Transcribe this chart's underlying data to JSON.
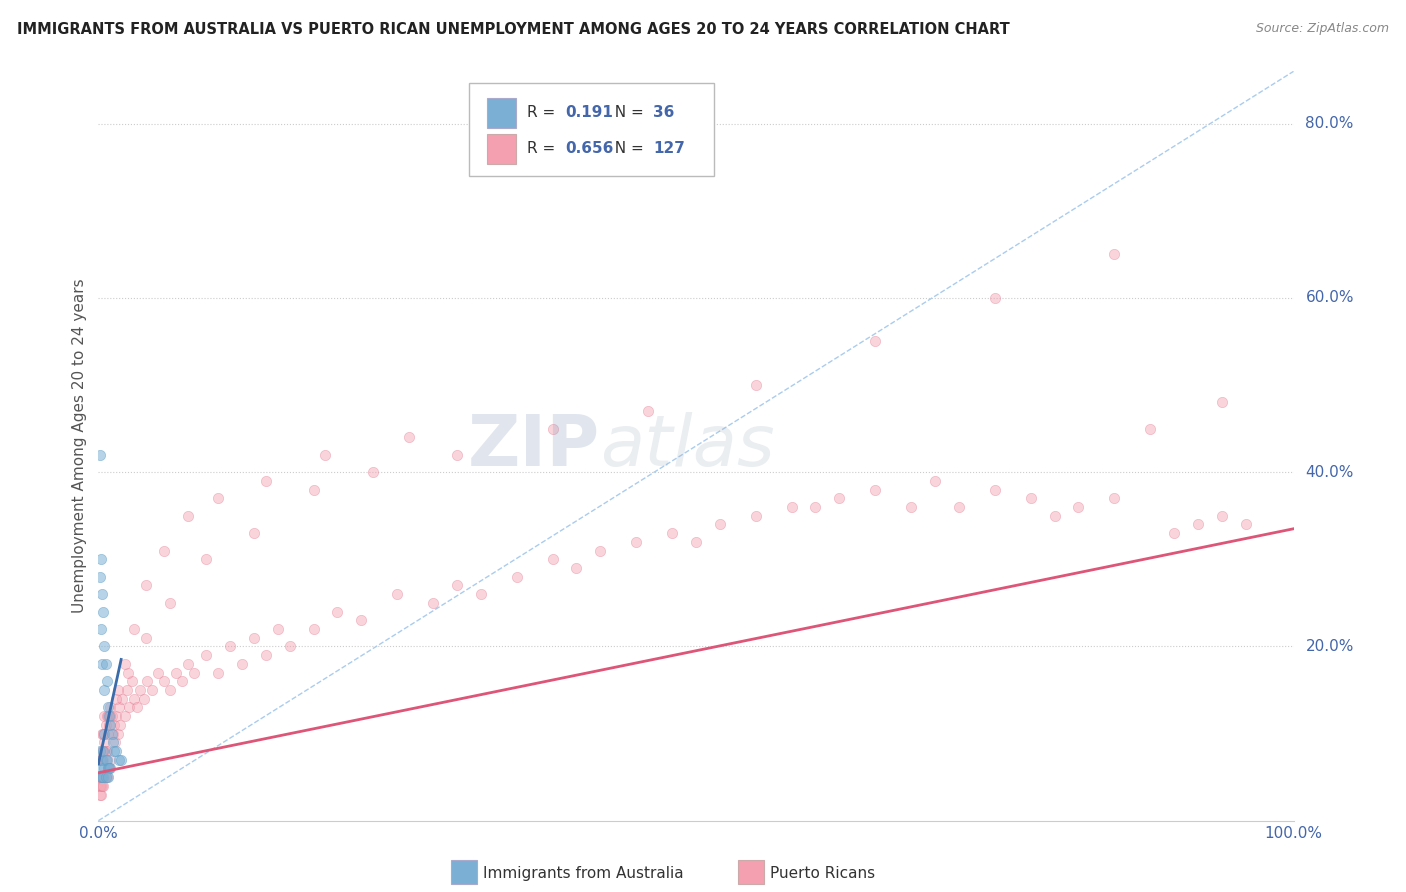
{
  "title": "IMMIGRANTS FROM AUSTRALIA VS PUERTO RICAN UNEMPLOYMENT AMONG AGES 20 TO 24 YEARS CORRELATION CHART",
  "source": "Source: ZipAtlas.com",
  "ylabel": "Unemployment Among Ages 20 to 24 years",
  "legend_blue_label": "Immigrants from Australia",
  "legend_pink_label": "Puerto Ricans",
  "blue_R": "0.191",
  "blue_N": "36",
  "pink_R": "0.656",
  "pink_N": "127",
  "blue_color": "#7BAFD4",
  "blue_edge": "#5A9BC4",
  "pink_color": "#F4A0B0",
  "pink_edge": "#E07890",
  "blue_line_color": "#3A6BAA",
  "pink_line_color": "#DD5577",
  "diagonal_color": "#AACCEE",
  "background": "#FFFFFF",
  "grid_color": "#CCCCCC",
  "title_color": "#222222",
  "tick_label_color": "#4466AA",
  "watermark_zip": "ZIP",
  "watermark_atlas": "atlas",
  "xlim": [
    0.0,
    1.0
  ],
  "ylim": [
    0.0,
    0.86
  ],
  "ytick_vals": [
    0.2,
    0.4,
    0.6,
    0.8
  ],
  "ytick_labels": [
    "20.0%",
    "40.0%",
    "60.0%",
    "80.0%"
  ],
  "marker_size": 55,
  "alpha_blue": 0.55,
  "alpha_pink": 0.45,
  "blue_scatter_x": [
    0.001,
    0.001,
    0.002,
    0.002,
    0.002,
    0.003,
    0.003,
    0.003,
    0.004,
    0.004,
    0.005,
    0.005,
    0.005,
    0.005,
    0.006,
    0.006,
    0.007,
    0.007,
    0.008,
    0.008,
    0.009,
    0.009,
    0.01,
    0.01,
    0.011,
    0.012,
    0.013,
    0.015,
    0.017,
    0.019,
    0.001,
    0.002,
    0.003,
    0.004,
    0.006,
    0.008
  ],
  "blue_scatter_y": [
    0.42,
    0.08,
    0.3,
    0.22,
    0.06,
    0.26,
    0.18,
    0.07,
    0.24,
    0.08,
    0.2,
    0.15,
    0.1,
    0.06,
    0.18,
    0.07,
    0.16,
    0.07,
    0.13,
    0.06,
    0.12,
    0.06,
    0.11,
    0.06,
    0.1,
    0.09,
    0.08,
    0.08,
    0.07,
    0.07,
    0.28,
    0.05,
    0.05,
    0.05,
    0.05,
    0.05
  ],
  "pink_scatter_x": [
    0.001,
    0.001,
    0.001,
    0.002,
    0.002,
    0.002,
    0.002,
    0.003,
    0.003,
    0.003,
    0.003,
    0.004,
    0.004,
    0.004,
    0.005,
    0.005,
    0.005,
    0.006,
    0.006,
    0.006,
    0.007,
    0.007,
    0.007,
    0.008,
    0.008,
    0.009,
    0.009,
    0.01,
    0.01,
    0.011,
    0.012,
    0.013,
    0.014,
    0.015,
    0.016,
    0.017,
    0.018,
    0.02,
    0.022,
    0.024,
    0.026,
    0.028,
    0.03,
    0.032,
    0.035,
    0.038,
    0.041,
    0.045,
    0.05,
    0.055,
    0.06,
    0.065,
    0.07,
    0.075,
    0.08,
    0.09,
    0.1,
    0.11,
    0.12,
    0.13,
    0.14,
    0.15,
    0.16,
    0.18,
    0.2,
    0.22,
    0.25,
    0.28,
    0.3,
    0.32,
    0.35,
    0.38,
    0.4,
    0.42,
    0.45,
    0.48,
    0.5,
    0.52,
    0.55,
    0.58,
    0.6,
    0.62,
    0.65,
    0.68,
    0.7,
    0.72,
    0.75,
    0.78,
    0.8,
    0.82,
    0.85,
    0.88,
    0.9,
    0.92,
    0.94,
    0.96,
    0.003,
    0.008,
    0.015,
    0.025,
    0.04,
    0.06,
    0.09,
    0.13,
    0.18,
    0.23,
    0.3,
    0.38,
    0.46,
    0.55,
    0.65,
    0.75,
    0.85,
    0.94,
    0.002,
    0.005,
    0.01,
    0.016,
    0.022,
    0.03,
    0.04,
    0.055,
    0.075,
    0.1,
    0.14,
    0.19,
    0.26
  ],
  "pink_scatter_y": [
    0.05,
    0.04,
    0.03,
    0.07,
    0.05,
    0.04,
    0.03,
    0.1,
    0.07,
    0.05,
    0.04,
    0.1,
    0.07,
    0.04,
    0.12,
    0.08,
    0.05,
    0.11,
    0.08,
    0.05,
    0.12,
    0.08,
    0.05,
    0.12,
    0.06,
    0.11,
    0.06,
    0.13,
    0.07,
    0.12,
    0.1,
    0.11,
    0.09,
    0.12,
    0.1,
    0.13,
    0.11,
    0.14,
    0.12,
    0.15,
    0.13,
    0.16,
    0.14,
    0.13,
    0.15,
    0.14,
    0.16,
    0.15,
    0.17,
    0.16,
    0.15,
    0.17,
    0.16,
    0.18,
    0.17,
    0.19,
    0.17,
    0.2,
    0.18,
    0.21,
    0.19,
    0.22,
    0.2,
    0.22,
    0.24,
    0.23,
    0.26,
    0.25,
    0.27,
    0.26,
    0.28,
    0.3,
    0.29,
    0.31,
    0.32,
    0.33,
    0.32,
    0.34,
    0.35,
    0.36,
    0.36,
    0.37,
    0.38,
    0.36,
    0.39,
    0.36,
    0.38,
    0.37,
    0.35,
    0.36,
    0.37,
    0.45,
    0.33,
    0.34,
    0.35,
    0.34,
    0.08,
    0.1,
    0.14,
    0.17,
    0.21,
    0.25,
    0.3,
    0.33,
    0.38,
    0.4,
    0.42,
    0.45,
    0.47,
    0.5,
    0.55,
    0.6,
    0.65,
    0.48,
    0.07,
    0.09,
    0.12,
    0.15,
    0.18,
    0.22,
    0.27,
    0.31,
    0.35,
    0.37,
    0.39,
    0.42,
    0.44
  ],
  "blue_trend_x": [
    0.0,
    0.019
  ],
  "blue_trend_y": [
    0.065,
    0.185
  ],
  "pink_trend_x": [
    0.0,
    1.0
  ],
  "pink_trend_y": [
    0.055,
    0.335
  ]
}
